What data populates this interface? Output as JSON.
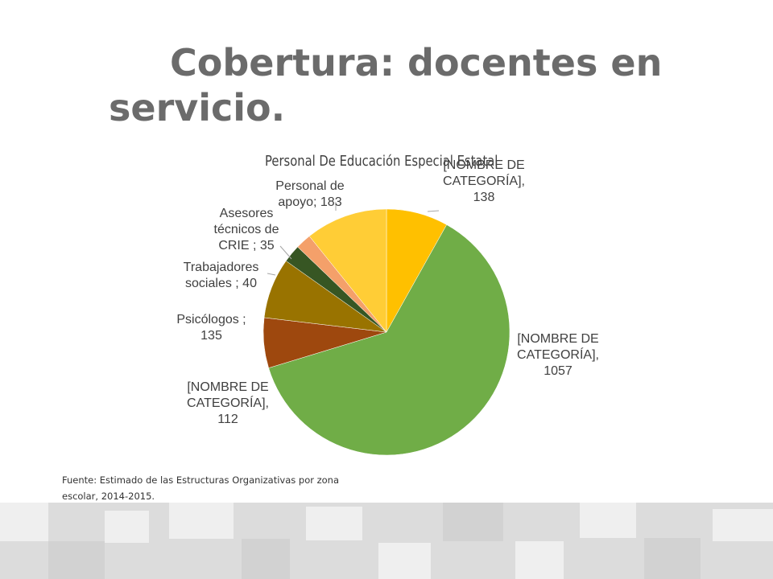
{
  "slide": {
    "title": "Cobertura: docentes en servicio.",
    "source": "Fuente: Estimado de las Estructuras Organizativas por zona escolar, 2014-2015."
  },
  "chart_data": {
    "type": "pie",
    "title": "Personal De Educación Especial Estatal",
    "slices": [
      {
        "label": "[NOMBRE DE CATEGORÍA], 138",
        "value": 138,
        "color": "#ffc000"
      },
      {
        "label": "[NOMBRE DE CATEGORÍA], 1057",
        "value": 1057,
        "color": "#70ad47"
      },
      {
        "label": "[NOMBRE DE CATEGORÍA], 112",
        "value": 112,
        "color": "#9e480e"
      },
      {
        "label": "Psicólogos ; 135",
        "value": 135,
        "color": "#997300"
      },
      {
        "label": "Trabajadores sociales ; 40",
        "value": 40,
        "color": "#375623"
      },
      {
        "label": "Asesores técnicos de CRIE ; 35",
        "value": 35,
        "color": "#f4a06a"
      },
      {
        "label": "Personal de apoyo; 183",
        "value": 183,
        "color": "#ffcd36"
      }
    ],
    "legend": "none"
  }
}
